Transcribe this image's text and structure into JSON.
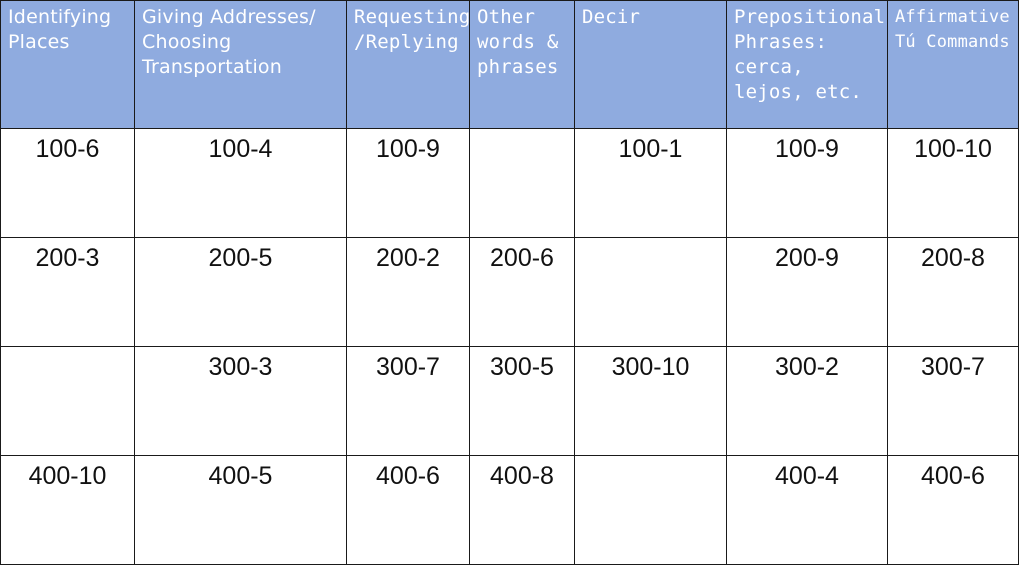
{
  "columns": [
    {
      "label": "Identifying Places",
      "style": "light"
    },
    {
      "label": "Giving Addresses/ Choosing Transportation",
      "style": "light"
    },
    {
      "label": "Requesting /Replying",
      "style": "bold"
    },
    {
      "label": "Other words & phrases",
      "style": "bold"
    },
    {
      "label": "Decir",
      "style": "bold"
    },
    {
      "label": "Prepositional Phrases: cerca, lejos, etc.",
      "style": "bold"
    },
    {
      "label": "Affirmative Tú Commands",
      "style": "bold"
    }
  ],
  "rows": [
    [
      "100-6",
      "100-4",
      "100-9",
      "",
      "100-1",
      "100-9",
      "100-10"
    ],
    [
      "200-3",
      "200-5",
      "200-2",
      "200-6",
      "",
      "200-9",
      "200-8"
    ],
    [
      "",
      "300-3",
      "300-7",
      "300-5",
      "300-10",
      "300-2",
      "300-7"
    ],
    [
      "400-10",
      "400-5",
      "400-6",
      "400-8",
      "",
      "400-4",
      "400-6"
    ]
  ],
  "colors": {
    "header_background": "#8fabdf",
    "header_text": "#ffffff",
    "grid_line": "#1a1a1a",
    "cell_text": "#111111"
  }
}
